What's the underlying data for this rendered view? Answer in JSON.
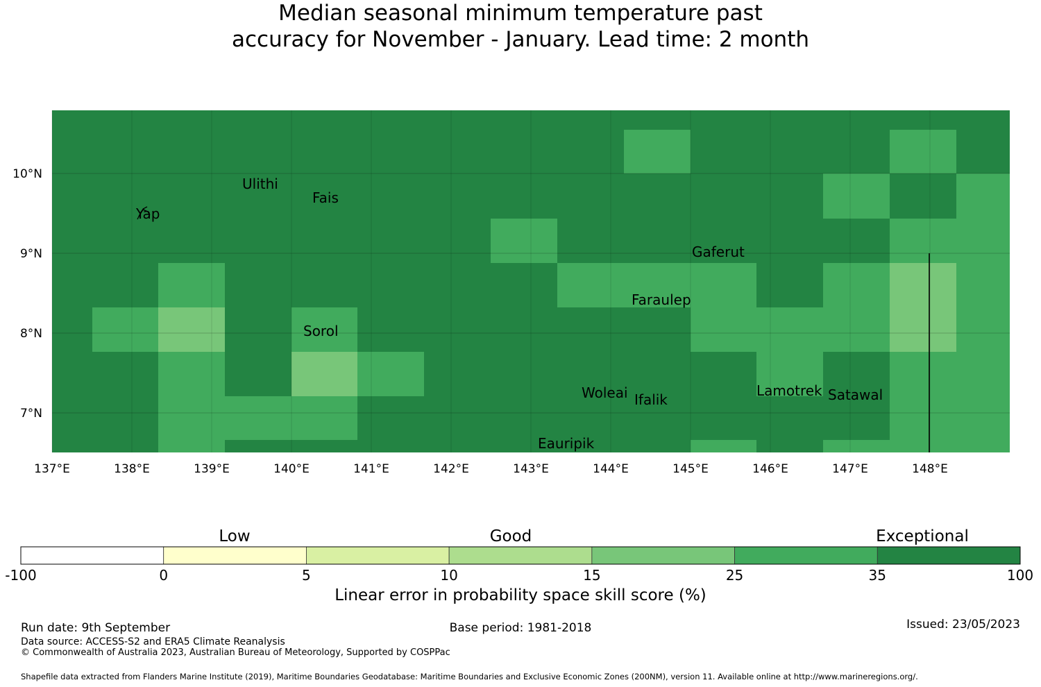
{
  "title": {
    "line1": "Median seasonal minimum temperature past",
    "line2": "accuracy for November - January. Lead time: 2 month"
  },
  "map": {
    "lon_range": [
      137,
      149
    ],
    "lat_range": [
      6.5,
      10.8
    ],
    "lon_ticks": [
      137,
      138,
      139,
      140,
      141,
      142,
      143,
      144,
      145,
      146,
      147,
      148
    ],
    "lon_tick_labels": [
      "137°E",
      "138°E",
      "139°E",
      "140°E",
      "141°E",
      "142°E",
      "143°E",
      "144°E",
      "145°E",
      "146°E",
      "147°E",
      "148°E"
    ],
    "lat_ticks": [
      10,
      9,
      8,
      7
    ],
    "lat_tick_labels": [
      "10°N",
      "9°N",
      "8°N",
      "7°N"
    ],
    "grid": true,
    "colors": {
      "exceptional": "#238443",
      "good_high": "#41ab5d",
      "good_mid": "#78c679",
      "good_low": "#addd8e",
      "low_high": "#d9f0a3",
      "low": "#ffffcc",
      "none": "#ffffff"
    },
    "islands": [
      {
        "name": "Yap",
        "lon": 138.1,
        "lat": 9.5
      },
      {
        "name": "Ulithi",
        "lon": 139.7,
        "lat": 9.9
      },
      {
        "name": "Fais",
        "lon": 140.5,
        "lat": 9.75
      },
      {
        "name": "Gaferut",
        "lon": 145.4,
        "lat": 9.2
      },
      {
        "name": "Faraulep",
        "lon": 144.6,
        "lat": 8.6
      },
      {
        "name": "Sorol",
        "lon": 140.4,
        "lat": 8.1
      },
      {
        "name": "Woleai",
        "lon": 143.9,
        "lat": 7.4
      },
      {
        "name": "Ifalik",
        "lon": 144.4,
        "lat": 7.25
      },
      {
        "name": "Lamotrek",
        "lon": 146.4,
        "lat": 7.5
      },
      {
        "name": "Satawal",
        "lon": 147.0,
        "lat": 7.35
      },
      {
        "name": "Eauripik",
        "lon": 143.1,
        "lat": 6.7
      }
    ],
    "island_labels": [
      "Yap",
      "Ulithi",
      "Fais",
      "Gaferut",
      "Faraulep",
      "Sorol",
      "Woleai",
      "Ifalik",
      "Lamotrek",
      "Satawal",
      "Eauripik"
    ]
  },
  "colorbar": {
    "category_labels": [
      "Low",
      "Good",
      "Exceptional"
    ],
    "boundaries": [
      -100,
      0,
      5,
      10,
      15,
      25,
      35,
      100
    ],
    "boundary_labels": [
      "-100",
      "0",
      "5",
      "10",
      "15",
      "25",
      "35",
      "100"
    ],
    "colors": [
      "#ffffff",
      "#ffffcc",
      "#d9f0a3",
      "#addd8e",
      "#78c679",
      "#41ab5d",
      "#238443"
    ],
    "title": "Linear error in probability space skill score (%)"
  },
  "footer": {
    "run_date": "Run date: 9th September",
    "base_period": "Base period: 1981-2018",
    "issued": "Issued: 23/05/2023",
    "data_source": "Data source: ACCESS-S2 and ERA5 Climate Reanalysis",
    "copyright": "© Commonwealth of Australia 2023, Australian Bureau of Meteorology, Supported by COSPPac",
    "shapefile": "Shapefile data extracted from Flanders Marine Institute (2019), Maritime Boundaries Geodatabase: Maritime Boundaries and Exclusive Economic Zones (200NM), version 11. Available online at http://www.marineregions.org/."
  }
}
